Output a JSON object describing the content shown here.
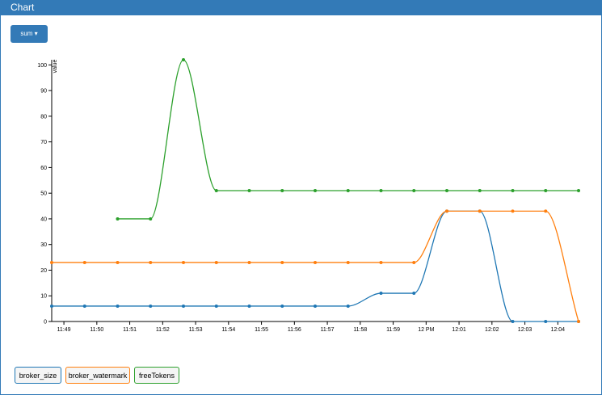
{
  "header": {
    "title": "Chart"
  },
  "button": {
    "label": "sum"
  },
  "chart_data": {
    "type": "line",
    "y_label": "value",
    "x": [
      708.63,
      709.63,
      710.63,
      711.63,
      712.63,
      713.63,
      714.63,
      715.63,
      716.63,
      717.63,
      718.63,
      719.63,
      720.63,
      721.63,
      722.63,
      723.63,
      724.63
    ],
    "series": [
      {
        "name": "broker_size",
        "color": "#1f77b4",
        "values": [
          6,
          6,
          6,
          6,
          6,
          6,
          6,
          6,
          6,
          6,
          11,
          11,
          43,
          43,
          0,
          0,
          0
        ]
      },
      {
        "name": "broker_watermark",
        "color": "#ff7f0e",
        "values": [
          23,
          23,
          23,
          23,
          23,
          23,
          23,
          23,
          23,
          23,
          23,
          23,
          43,
          43,
          43,
          43,
          0
        ]
      },
      {
        "name": "freeTokens",
        "color": "#2ca02c",
        "values": [
          null,
          null,
          40,
          40,
          102,
          51,
          51,
          51,
          51,
          51,
          51,
          51,
          51,
          51,
          51,
          51,
          51
        ]
      }
    ],
    "xlim": [
      708.63,
      724.63
    ],
    "xticks": [
      {
        "value": 709,
        "label": "11:49"
      },
      {
        "value": 710,
        "label": "11:50"
      },
      {
        "value": 711,
        "label": "11:51"
      },
      {
        "value": 712,
        "label": "11:52"
      },
      {
        "value": 713,
        "label": "11:53"
      },
      {
        "value": 714,
        "label": "11:54"
      },
      {
        "value": 715,
        "label": "11:55"
      },
      {
        "value": 716,
        "label": "11:56"
      },
      {
        "value": 717,
        "label": "11:57"
      },
      {
        "value": 718,
        "label": "11:58"
      },
      {
        "value": 719,
        "label": "11:59"
      },
      {
        "value": 720,
        "label": "12 PM"
      },
      {
        "value": 721,
        "label": "12:01"
      },
      {
        "value": 722,
        "label": "12:02"
      },
      {
        "value": 723,
        "label": "12:03"
      },
      {
        "value": 724,
        "label": "12:04"
      }
    ],
    "ylim": [
      0,
      102
    ],
    "yticks": [
      0,
      10,
      20,
      30,
      40,
      50,
      60,
      70,
      80,
      90,
      100
    ]
  }
}
